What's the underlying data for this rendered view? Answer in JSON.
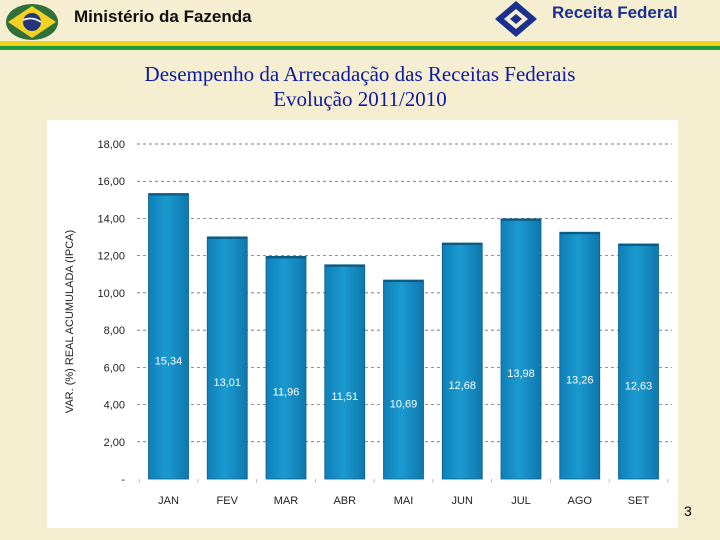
{
  "header": {
    "ministry": "Ministério da Fazenda",
    "agency": "Receita Federal",
    "logo_left_icon": "brazil-flag-globe-icon",
    "logo_right_icon": "receita-federal-emblem-icon"
  },
  "title": {
    "line1": "Desempenho da Arrecadação das Receitas Federais",
    "line2": "Evolução 2011/2010"
  },
  "colors": {
    "title": "#0d1aa0",
    "bar": "#1b9ad0",
    "stripe_yellow": "#f2d21a",
    "stripe_green": "#1e9a3c",
    "agency": "#1b2f8f"
  },
  "chart_data": {
    "type": "bar",
    "categories": [
      "JAN",
      "FEV",
      "MAR",
      "ABR",
      "MAI",
      "JUN",
      "JUL",
      "AGO",
      "SET"
    ],
    "values": [
      15.34,
      13.01,
      11.96,
      11.51,
      10.69,
      12.68,
      13.98,
      13.26,
      12.63
    ],
    "value_labels": [
      "15,34",
      "13,01",
      "11,96",
      "11,51",
      "10,69",
      "12,68",
      "13,98",
      "13,26",
      "12,63"
    ],
    "ylabel": "VAR. (%) REAL ACUMULADA (IPCA)",
    "ylim": [
      0,
      18
    ],
    "yticks": [
      0,
      2,
      4,
      6,
      8,
      10,
      12,
      14,
      16,
      18
    ],
    "ytick_labels": [
      "-",
      "2,00",
      "4,00",
      "6,00",
      "8,00",
      "10,00",
      "12,00",
      "14,00",
      "16,00",
      "18,00"
    ],
    "grid": true
  },
  "footer": {
    "page_number": "3"
  }
}
